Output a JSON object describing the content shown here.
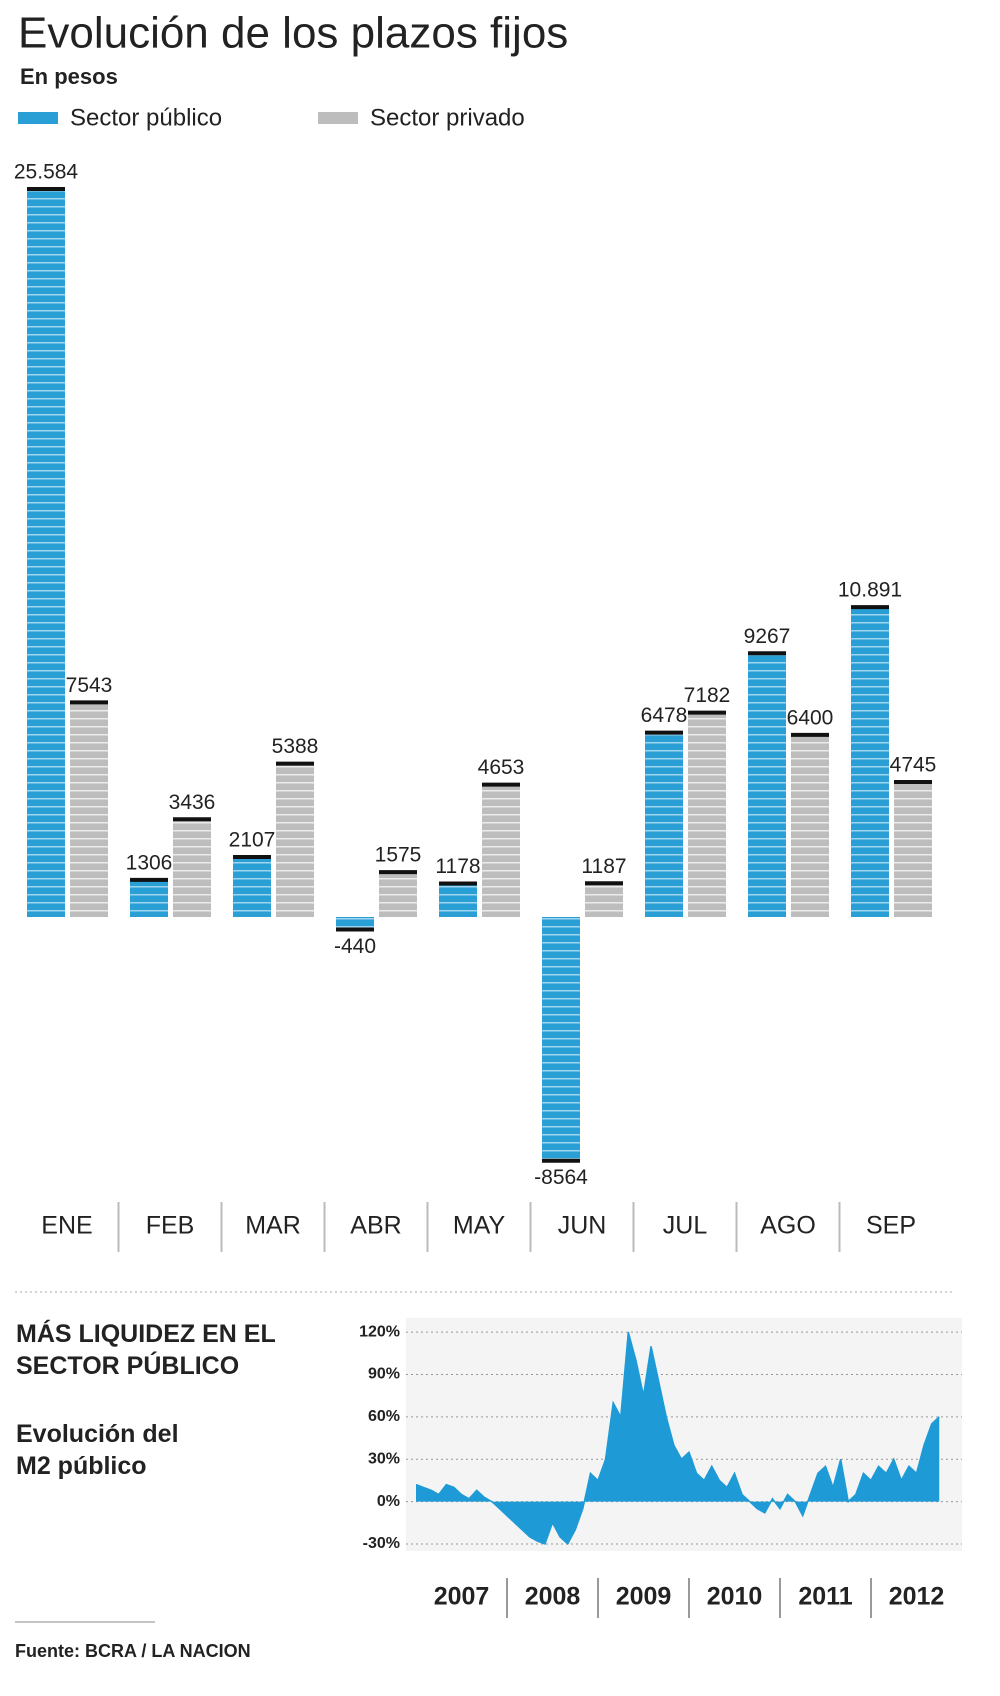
{
  "chart_data": [
    {
      "type": "bar",
      "title": "Evolución de los plazos fijos",
      "subtitle": "En pesos",
      "categories": [
        "ENE",
        "FEB",
        "MAR",
        "ABR",
        "MAY",
        "JUN",
        "JUL",
        "AGO",
        "SEP"
      ],
      "series": [
        {
          "name": "Sector público",
          "color": "#2a9fd6",
          "values": [
            25584,
            1306,
            2107,
            -440,
            1178,
            -8564,
            6478,
            9267,
            10891
          ],
          "value_labels": [
            "25.584",
            "1306",
            "2107",
            "-440",
            "1178",
            "-8564",
            "6478",
            "9267",
            "10.891"
          ]
        },
        {
          "name": "Sector privado",
          "color": "#bdbdbd",
          "values": [
            7543,
            3436,
            5388,
            1575,
            4653,
            1187,
            7182,
            6400,
            4745
          ]
        }
      ]
    },
    {
      "type": "area",
      "title": "MÁS LIQUIDEZ EN EL SECTOR PÚBLICO",
      "subtitle": "Evolución del M2 público",
      "color": "#1e9bd7",
      "grid": true,
      "xlim": [
        2007,
        2013
      ],
      "ylim": [
        -35,
        130
      ],
      "yticks": [
        {
          "value": 120,
          "label": "120%"
        },
        {
          "value": 90,
          "label": "90%"
        },
        {
          "value": 60,
          "label": "60%"
        },
        {
          "value": 30,
          "label": "30%"
        },
        {
          "value": 0,
          "label": "0%"
        },
        {
          "value": -30,
          "label": "-30%"
        }
      ],
      "xticks": [
        {
          "value": 2007.5,
          "label": "2007"
        },
        {
          "value": 2008.5,
          "label": "2008"
        },
        {
          "value": 2009.5,
          "label": "2009"
        },
        {
          "value": 2010.5,
          "label": "2010"
        },
        {
          "value": 2011.5,
          "label": "2011"
        },
        {
          "value": 2012.5,
          "label": "2012"
        }
      ],
      "x": [
        2007,
        2007.083,
        2007.167,
        2007.25,
        2007.333,
        2007.417,
        2007.5,
        2007.583,
        2007.667,
        2007.75,
        2007.833,
        2007.917,
        2008,
        2008.083,
        2008.167,
        2008.25,
        2008.333,
        2008.417,
        2008.5,
        2008.583,
        2008.667,
        2008.75,
        2008.833,
        2008.917,
        2009,
        2009.083,
        2009.167,
        2009.25,
        2009.333,
        2009.417,
        2009.5,
        2009.583,
        2009.667,
        2009.75,
        2009.833,
        2009.917,
        2010,
        2010.083,
        2010.167,
        2010.25,
        2010.333,
        2010.417,
        2010.5,
        2010.583,
        2010.667,
        2010.75,
        2010.833,
        2010.917,
        2011,
        2011.083,
        2011.167,
        2011.25,
        2011.333,
        2011.417,
        2011.5,
        2011.583,
        2011.667,
        2011.75,
        2011.833,
        2011.917,
        2012,
        2012.083,
        2012.167,
        2012.25,
        2012.333,
        2012.417,
        2012.5,
        2012.583,
        2012.667,
        2012.75
      ],
      "values": [
        12,
        10,
        8,
        5,
        12,
        10,
        5,
        2,
        8,
        3,
        0,
        -5,
        -10,
        -15,
        -20,
        -25,
        -28,
        -30,
        -15,
        -25,
        -30,
        -20,
        -5,
        20,
        15,
        30,
        70,
        60,
        120,
        100,
        75,
        110,
        85,
        60,
        40,
        30,
        35,
        20,
        15,
        25,
        15,
        10,
        20,
        5,
        0,
        -5,
        -8,
        2,
        -5,
        5,
        0,
        -10,
        5,
        20,
        25,
        10,
        30,
        0,
        5,
        20,
        15,
        25,
        20,
        30,
        15,
        25,
        20,
        40,
        55,
        60
      ]
    }
  ],
  "source": "Fuente: BCRA / LA NACION"
}
